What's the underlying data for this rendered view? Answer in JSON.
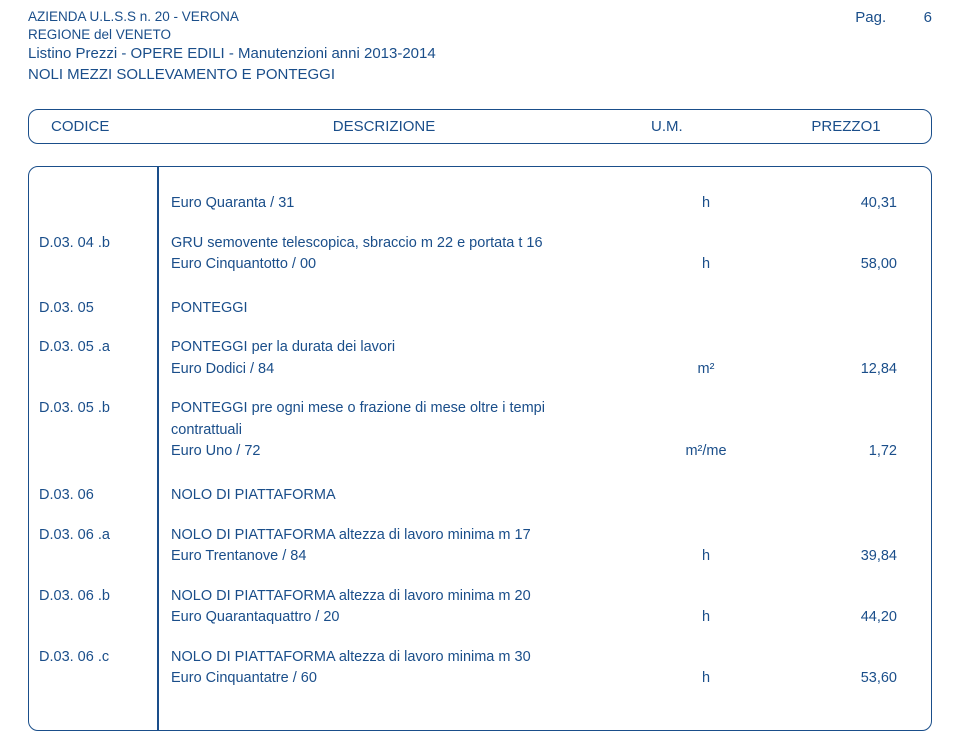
{
  "page": {
    "label": "Pag.",
    "number": "6"
  },
  "header": {
    "line1": "AZIENDA  U.L.S.S  n. 20  - VERONA",
    "line2": "REGIONE del VENETO",
    "line3": "Listino Prezzi - OPERE EDILI - Manutenzioni anni 2013-2014",
    "line4": "NOLI MEZZI SOLLEVAMENTO E PONTEGGI"
  },
  "columns": {
    "code": "CODICE",
    "desc": "DESCRIZIONE",
    "um": "U.M.",
    "price": "PREZZO1"
  },
  "rows": [
    {
      "code": "",
      "desc": "Euro Quaranta / 31",
      "um": "h",
      "price": "40,31",
      "gap_before": 0
    },
    {
      "code": "D.03. 04 .b",
      "desc": "GRU semovente telescopica, sbraccio m 22 e portata t 16",
      "um": "",
      "price": "",
      "gap_before": 18
    },
    {
      "code": "",
      "desc": "Euro Cinquantotto / 00",
      "um": "h",
      "price": "58,00",
      "gap_before": 0
    },
    {
      "code": "D.03. 05",
      "desc": "PONTEGGI",
      "um": "",
      "price": "",
      "gap_before": 22
    },
    {
      "code": "D.03. 05 .a",
      "desc": "PONTEGGI per la durata dei lavori",
      "um": "",
      "price": "",
      "gap_before": 18
    },
    {
      "code": "",
      "desc": "Euro Dodici / 84",
      "um": "m²",
      "price": "12,84",
      "gap_before": 0
    },
    {
      "code": "D.03. 05 .b",
      "desc": "PONTEGGI pre ogni mese o frazione di mese oltre i tempi",
      "um": "",
      "price": "",
      "gap_before": 18
    },
    {
      "code": "",
      "desc": "contrattuali",
      "um": "",
      "price": "",
      "gap_before": 0
    },
    {
      "code": "",
      "desc": "Euro Uno / 72",
      "um": "m²/me",
      "price": "1,72",
      "gap_before": 0
    },
    {
      "code": "D.03. 06",
      "desc": "NOLO DI PIATTAFORMA",
      "um": "",
      "price": "",
      "gap_before": 22
    },
    {
      "code": "D.03. 06 .a",
      "desc": "NOLO DI PIATTAFORMA altezza di lavoro minima m 17",
      "um": "",
      "price": "",
      "gap_before": 18
    },
    {
      "code": "",
      "desc": "Euro Trentanove / 84",
      "um": "h",
      "price": "39,84",
      "gap_before": 0
    },
    {
      "code": "D.03. 06 .b",
      "desc": "NOLO DI PIATTAFORMA altezza di lavoro minima m 20",
      "um": "",
      "price": "",
      "gap_before": 18
    },
    {
      "code": "",
      "desc": "Euro Quarantaquattro / 20",
      "um": "h",
      "price": "44,20",
      "gap_before": 0
    },
    {
      "code": "D.03. 06 .c",
      "desc": "NOLO DI PIATTAFORMA altezza di lavoro minima m 30",
      "um": "",
      "price": "",
      "gap_before": 18
    },
    {
      "code": "",
      "desc": "Euro Cinquantatre / 60",
      "um": "h",
      "price": "53,60",
      "gap_before": 0
    }
  ],
  "style": {
    "text_color": "#1a4e8a",
    "border_color": "#1a4e8a",
    "background": "#ffffff",
    "font_family": "Arial, Helvetica, sans-serif",
    "header_small_fontsize": 13.5,
    "header_large_fontsize": 15,
    "body_fontsize": 14.5,
    "border_radius": 10,
    "border_width": 1.5,
    "col_code_width": 128,
    "col_um_width": 110,
    "col_price_width": 170
  }
}
